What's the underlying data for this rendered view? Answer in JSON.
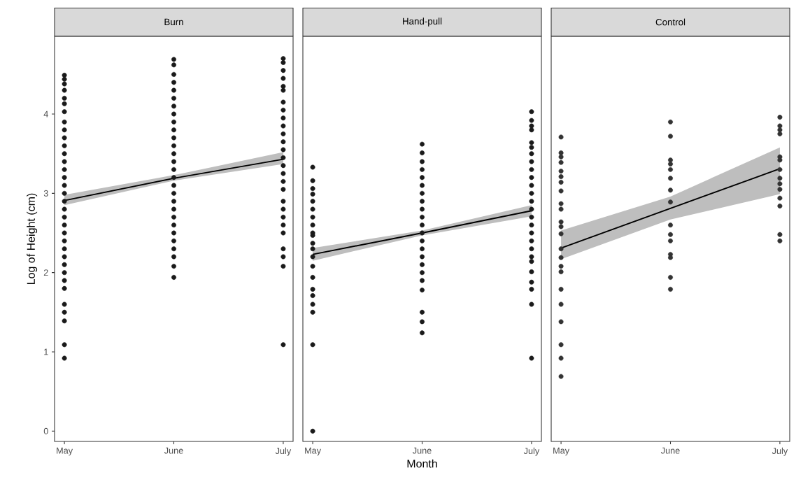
{
  "chart_data": [
    {
      "type": "scatter",
      "title": "Burn",
      "ylabel": "Log of Height (cm)",
      "marker": "circle",
      "categories": [
        "May",
        "June",
        "July"
      ],
      "ylim": [
        -0.13,
        4.98
      ],
      "yticks": [
        0,
        1,
        2,
        3,
        4
      ],
      "series": [
        {
          "color": "#1a1a1a",
          "x": [
            "May",
            "May",
            "May",
            "May",
            "May",
            "May",
            "May",
            "May",
            "May",
            "May",
            "May",
            "May",
            "May",
            "May",
            "May",
            "May",
            "May",
            "May",
            "May",
            "May",
            "May",
            "May",
            "May",
            "May",
            "May",
            "May",
            "May",
            "May",
            "May",
            "May",
            "May",
            "May",
            "May",
            "May"
          ],
          "values": [
            4.49,
            4.44,
            4.38,
            4.3,
            4.2,
            4.13,
            4.03,
            3.9,
            3.8,
            3.7,
            3.6,
            3.5,
            3.4,
            3.3,
            3.2,
            3.1,
            3.0,
            2.9,
            2.8,
            2.7,
            2.6,
            2.5,
            2.4,
            2.3,
            2.2,
            2.1,
            2.0,
            1.9,
            1.8,
            1.6,
            1.5,
            1.39,
            1.09,
            0.92
          ]
        },
        {
          "color": "#1a1a1a",
          "x": [
            "June",
            "June",
            "June",
            "June",
            "June",
            "June",
            "June",
            "June",
            "June",
            "June",
            "June",
            "June",
            "June",
            "June",
            "June",
            "June",
            "June",
            "June",
            "June",
            "June",
            "June",
            "June",
            "June",
            "June",
            "June",
            "June",
            "June",
            "June"
          ],
          "values": [
            4.69,
            4.62,
            4.5,
            4.4,
            4.3,
            4.2,
            4.1,
            4.0,
            3.9,
            3.8,
            3.7,
            3.6,
            3.5,
            3.4,
            3.3,
            3.2,
            3.1,
            3.0,
            2.9,
            2.8,
            2.7,
            2.6,
            2.5,
            2.4,
            2.3,
            2.2,
            2.08,
            1.94
          ]
        },
        {
          "color": "#1a1a1a",
          "x": [
            "July",
            "July",
            "July",
            "July",
            "July",
            "July",
            "July",
            "July",
            "July",
            "July",
            "July",
            "July",
            "July",
            "July",
            "July",
            "July",
            "July",
            "July",
            "July",
            "July",
            "July",
            "July",
            "July",
            "July",
            "July",
            "July",
            "July"
          ],
          "values": [
            4.7,
            4.65,
            4.55,
            4.45,
            4.35,
            4.3,
            4.15,
            4.05,
            3.95,
            3.85,
            3.75,
            3.65,
            3.55,
            3.45,
            3.35,
            3.25,
            3.15,
            3.05,
            2.9,
            2.8,
            2.7,
            2.6,
            2.5,
            2.3,
            2.2,
            2.08,
            1.09
          ]
        },
        {
          "type": "line",
          "marker": "none",
          "color": "#000000",
          "values": [
            2.91,
            3.19,
            3.43
          ],
          "lower": [
            2.85,
            3.16,
            3.37
          ],
          "upper": [
            2.98,
            3.23,
            3.52
          ]
        }
      ]
    },
    {
      "type": "scatter",
      "title": "Hand-pull",
      "xlabel": "Month",
      "marker": "circle",
      "tick_labels": "x",
      "categories": [
        "May",
        "June",
        "July"
      ],
      "ylim": [
        -0.13,
        4.98
      ],
      "series": [
        {
          "color": "#1a1a1a",
          "x": [
            "May",
            "May",
            "May",
            "May",
            "May",
            "May",
            "May",
            "May",
            "May",
            "May",
            "May",
            "May",
            "May",
            "May",
            "May",
            "May",
            "May",
            "May",
            "May",
            "May",
            "May"
          ],
          "values": [
            3.33,
            3.16,
            3.06,
            2.99,
            2.9,
            2.8,
            2.7,
            2.6,
            2.5,
            2.47,
            2.37,
            2.3,
            2.2,
            2.08,
            1.94,
            1.79,
            1.71,
            1.6,
            1.5,
            1.09,
            0
          ]
        },
        {
          "color": "#1a1a1a",
          "x": [
            "June",
            "June",
            "June",
            "June",
            "June",
            "June",
            "June",
            "June",
            "June",
            "June",
            "June",
            "June",
            "June",
            "June",
            "June",
            "June",
            "June",
            "June",
            "June",
            "June",
            "June",
            "June"
          ],
          "values": [
            3.62,
            3.51,
            3.4,
            3.3,
            3.2,
            3.1,
            3.0,
            2.9,
            2.8,
            2.7,
            2.6,
            2.5,
            2.4,
            2.3,
            2.2,
            2.1,
            2.0,
            1.9,
            1.78,
            1.5,
            1.38,
            1.24
          ]
        },
        {
          "color": "#1a1a1a",
          "x": [
            "July",
            "July",
            "July",
            "July",
            "July",
            "July",
            "July",
            "July",
            "July",
            "July",
            "July",
            "July",
            "July",
            "July",
            "July",
            "July",
            "July",
            "July",
            "July",
            "July",
            "July",
            "July",
            "July",
            "July",
            "July",
            "July"
          ],
          "values": [
            4.03,
            3.92,
            3.85,
            3.8,
            3.64,
            3.58,
            3.5,
            3.4,
            3.3,
            3.2,
            3.1,
            3.0,
            2.9,
            2.8,
            2.7,
            2.6,
            2.5,
            2.4,
            2.3,
            2.2,
            2.14,
            2.01,
            1.88,
            1.79,
            1.6,
            0.92
          ]
        },
        {
          "type": "line",
          "marker": "none",
          "color": "#000000",
          "values": [
            2.23,
            2.5,
            2.78
          ],
          "lower": [
            2.15,
            2.47,
            2.71
          ],
          "upper": [
            2.31,
            2.53,
            2.85
          ]
        }
      ]
    },
    {
      "type": "scatter",
      "title": "Control",
      "marker": "circle",
      "tick_labels": "x",
      "categories": [
        "May",
        "June",
        "July"
      ],
      "ylim": [
        -0.13,
        4.98
      ],
      "series": [
        {
          "color": "#333333",
          "x": [
            "May",
            "May",
            "May",
            "May",
            "May",
            "May",
            "May",
            "May",
            "May",
            "May",
            "May",
            "May",
            "May",
            "May",
            "May",
            "May",
            "May",
            "May",
            "May",
            "May",
            "May",
            "May",
            "May"
          ],
          "values": [
            3.71,
            3.51,
            3.46,
            3.39,
            3.28,
            3.21,
            3.14,
            3.03,
            2.87,
            2.8,
            2.64,
            2.58,
            2.49,
            2.3,
            2.19,
            2.08,
            2.01,
            1.79,
            1.6,
            1.38,
            1.09,
            0.92,
            0.69
          ]
        },
        {
          "color": "#333333",
          "x": [
            "June",
            "June",
            "June",
            "June",
            "June",
            "June",
            "June",
            "June",
            "June",
            "June",
            "June",
            "June",
            "June",
            "June",
            "June"
          ],
          "values": [
            3.9,
            3.72,
            3.42,
            3.37,
            3.3,
            3.19,
            3.04,
            2.89,
            2.6,
            2.48,
            2.4,
            2.23,
            2.19,
            1.94,
            1.79
          ]
        },
        {
          "color": "#333333",
          "x": [
            "July",
            "July",
            "July",
            "July",
            "July",
            "July",
            "July",
            "July",
            "July",
            "July",
            "July",
            "July",
            "July",
            "July"
          ],
          "values": [
            3.96,
            3.85,
            3.8,
            3.75,
            3.46,
            3.42,
            3.3,
            3.19,
            3.12,
            3.05,
            2.94,
            2.84,
            2.48,
            2.4
          ]
        },
        {
          "type": "line",
          "marker": "none",
          "color": "#000000",
          "values": [
            2.31,
            2.81,
            3.31
          ],
          "lower": [
            2.17,
            2.67,
            2.99
          ],
          "upper": [
            2.53,
            2.96,
            3.58
          ]
        }
      ]
    }
  ]
}
